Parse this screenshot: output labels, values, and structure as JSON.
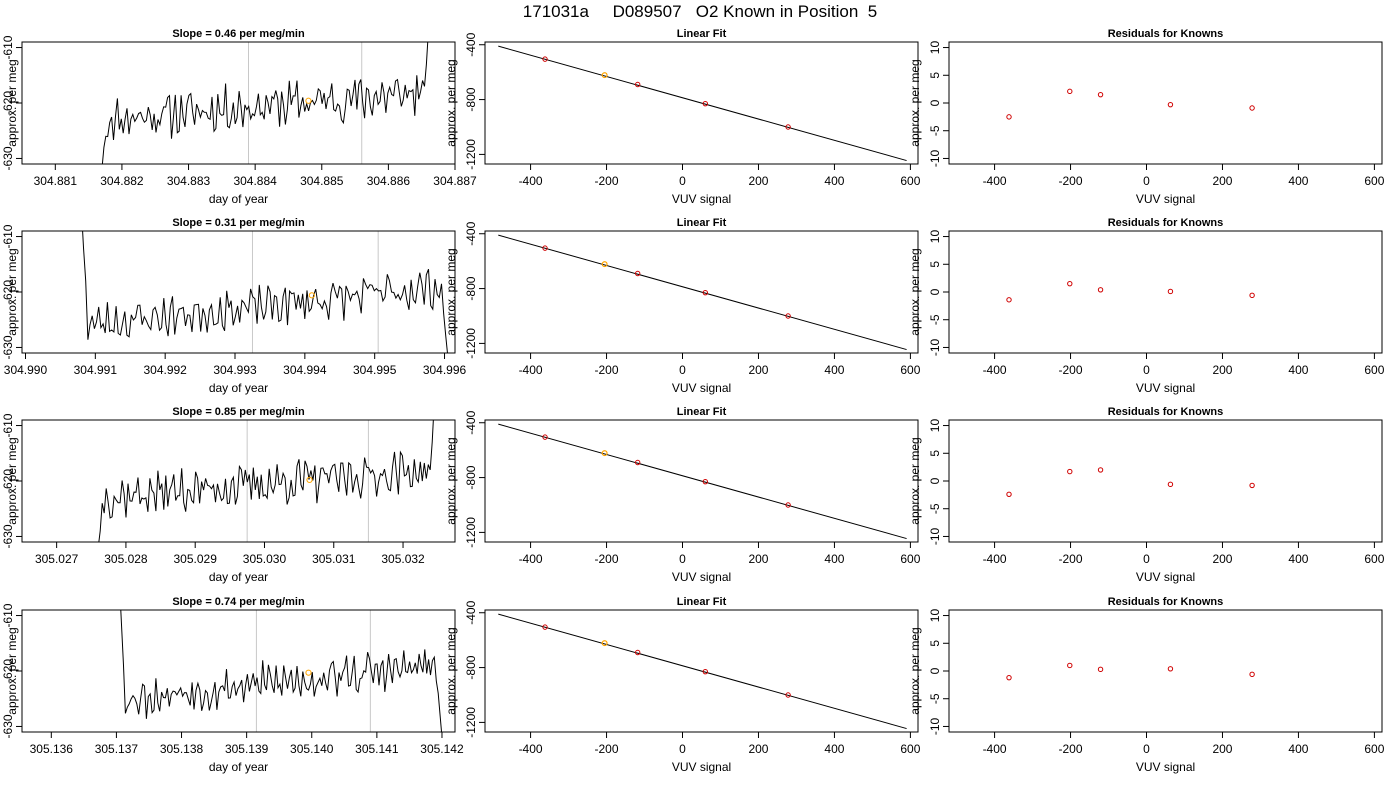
{
  "page": {
    "title": "171031a     D089507   O2 Known in Position  5"
  },
  "chart_data": [
    {
      "type": "line",
      "row": 0,
      "title": "Slope =  0.46  per meg/min",
      "xlabel": "day of year",
      "ylabel": "approx. per meg",
      "xlim": [
        304.8805,
        304.887
      ],
      "ylim": [
        -631,
        -609
      ],
      "x_ticks": [
        "304.881",
        "304.882",
        "304.883",
        "304.884",
        "304.885",
        "304.886",
        "304.887"
      ],
      "x_tick_values": [
        304.881,
        304.882,
        304.883,
        304.884,
        304.885,
        304.886,
        304.887
      ],
      "y_ticks": [
        "-610",
        "-620",
        "-630"
      ],
      "y_tick_values": [
        -610,
        -620,
        -630
      ],
      "x_start": 304.8817,
      "x_end": 304.8866,
      "vlines": [
        304.8839,
        304.8856
      ],
      "marker": {
        "x": 304.8848,
        "y": -619.6
      },
      "entry_tail": [
        -632,
        -628,
        -626
      ],
      "exit_tail": [
        -617,
        -613,
        -607
      ],
      "noise_seed": 11,
      "drift": [
        -623,
        -618
      ],
      "amplitude": 3.2
    },
    {
      "type": "scatter",
      "row": 0,
      "title": "Linear Fit",
      "xlabel": "VUV signal",
      "ylabel": "approx. per meg",
      "xlim": [
        -520,
        620
      ],
      "ylim": [
        -1270,
        -380
      ],
      "x_ticks": [
        "-400",
        "-200",
        "0",
        "200",
        "400",
        "600"
      ],
      "x_tick_values": [
        -400,
        -200,
        0,
        200,
        400,
        600
      ],
      "y_ticks": [
        "-400",
        "-800",
        "-1200"
      ],
      "y_tick_values": [
        -400,
        -800,
        -1200
      ],
      "line": {
        "x": [
          -485,
          590
        ],
        "y": [
          -410,
          -1245
        ]
      },
      "points": [
        {
          "x": -362,
          "y": -505
        },
        {
          "x": -118,
          "y": -690
        },
        {
          "x": 60,
          "y": -830
        },
        {
          "x": 278,
          "y": -1000
        }
      ],
      "highlight": {
        "x": -205,
        "y": -622
      }
    },
    {
      "type": "scatter",
      "row": 0,
      "title": "Residuals for Knowns",
      "xlabel": "VUV signal",
      "ylabel": "approx. per meg",
      "xlim": [
        -520,
        620
      ],
      "ylim": [
        -11,
        11
      ],
      "x_ticks": [
        "-400",
        "-200",
        "0",
        "200",
        "400",
        "600"
      ],
      "x_tick_values": [
        -400,
        -200,
        0,
        200,
        400,
        600
      ],
      "y_ticks": [
        "10",
        "5",
        "0",
        "-5",
        "-10"
      ],
      "y_tick_values": [
        10,
        5,
        0,
        -5,
        -10
      ],
      "points": [
        {
          "x": -362,
          "y": -2.5
        },
        {
          "x": -202,
          "y": 2.1
        },
        {
          "x": -121,
          "y": 1.5
        },
        {
          "x": 63,
          "y": -0.3
        },
        {
          "x": 278,
          "y": -0.9
        }
      ]
    },
    {
      "type": "line",
      "row": 1,
      "title": "Slope =  0.31  per meg/min",
      "xlabel": "day of year",
      "ylabel": "approx. per meg",
      "xlim": [
        304.98995,
        304.99615
      ],
      "ylim": [
        -631,
        -609
      ],
      "x_ticks": [
        "304.990",
        "304.991",
        "304.992",
        "304.993",
        "304.994",
        "304.995",
        "304.996"
      ],
      "x_tick_values": [
        304.99,
        304.991,
        304.992,
        304.993,
        304.994,
        304.995,
        304.996
      ],
      "y_ticks": [
        "-610",
        "-620",
        "-630"
      ],
      "y_tick_values": [
        -610,
        -620,
        -630
      ],
      "x_start": 304.9908,
      "x_end": 304.99605,
      "vlines": [
        304.99325,
        304.99505
      ],
      "marker": {
        "x": 304.9941,
        "y": -620.6
      },
      "entry_tail": [
        -605,
        -612,
        -618
      ],
      "exit_tail": [
        -624,
        -628,
        -632
      ],
      "noise_seed": 23,
      "drift": [
        -626,
        -619
      ],
      "amplitude": 2.8
    },
    {
      "type": "scatter",
      "row": 1,
      "title": "Linear Fit",
      "xlabel": "VUV signal",
      "ylabel": "approx. per meg",
      "xlim": [
        -520,
        620
      ],
      "ylim": [
        -1270,
        -380
      ],
      "x_ticks": [
        "-400",
        "-200",
        "0",
        "200",
        "400",
        "600"
      ],
      "x_tick_values": [
        -400,
        -200,
        0,
        200,
        400,
        600
      ],
      "y_ticks": [
        "-400",
        "-800",
        "-1200"
      ],
      "y_tick_values": [
        -400,
        -800,
        -1200
      ],
      "line": {
        "x": [
          -485,
          590
        ],
        "y": [
          -410,
          -1245
        ]
      },
      "points": [
        {
          "x": -362,
          "y": -505
        },
        {
          "x": -118,
          "y": -690
        },
        {
          "x": 60,
          "y": -830
        },
        {
          "x": 278,
          "y": -1000
        }
      ],
      "highlight": {
        "x": -205,
        "y": -622
      }
    },
    {
      "type": "scatter",
      "row": 1,
      "title": "Residuals for Knowns",
      "xlabel": "VUV signal",
      "ylabel": "approx. per meg",
      "xlim": [
        -520,
        620
      ],
      "ylim": [
        -11,
        11
      ],
      "x_ticks": [
        "-400",
        "-200",
        "0",
        "200",
        "400",
        "600"
      ],
      "x_tick_values": [
        -400,
        -200,
        0,
        200,
        400,
        600
      ],
      "y_ticks": [
        "10",
        "5",
        "0",
        "-5",
        "-10"
      ],
      "y_tick_values": [
        10,
        5,
        0,
        -5,
        -10
      ],
      "points": [
        {
          "x": -362,
          "y": -1.4
        },
        {
          "x": -202,
          "y": 1.5
        },
        {
          "x": -121,
          "y": 0.4
        },
        {
          "x": 63,
          "y": 0.1
        },
        {
          "x": 278,
          "y": -0.6
        }
      ]
    },
    {
      "type": "line",
      "row": 2,
      "title": "Slope =  0.85  per meg/min",
      "xlabel": "day of year",
      "ylabel": "approx. per meg",
      "xlim": [
        305.0265,
        305.03275
      ],
      "ylim": [
        -631,
        -609
      ],
      "x_ticks": [
        "305.027",
        "305.028",
        "305.029",
        "305.030",
        "305.031",
        "305.032"
      ],
      "x_tick_values": [
        305.027,
        305.028,
        305.029,
        305.03,
        305.031,
        305.032
      ],
      "y_ticks": [
        "-610",
        "-620",
        "-630"
      ],
      "y_tick_values": [
        -610,
        -620,
        -630
      ],
      "x_start": 305.0276,
      "x_end": 305.03245,
      "vlines": [
        305.02975,
        305.0315
      ],
      "marker": {
        "x": 305.03065,
        "y": -619.8
      },
      "entry_tail": [
        -632,
        -629,
        -624
      ],
      "exit_tail": [
        -618,
        -613,
        -606
      ],
      "noise_seed": 37,
      "drift": [
        -623,
        -618
      ],
      "amplitude": 3.0
    },
    {
      "type": "scatter",
      "row": 2,
      "title": "Linear Fit",
      "xlabel": "VUV signal",
      "ylabel": "approx. per meg",
      "xlim": [
        -520,
        620
      ],
      "ylim": [
        -1270,
        -380
      ],
      "x_ticks": [
        "-400",
        "-200",
        "0",
        "200",
        "400",
        "600"
      ],
      "x_tick_values": [
        -400,
        -200,
        0,
        200,
        400,
        600
      ],
      "y_ticks": [
        "-400",
        "-800",
        "-1200"
      ],
      "y_tick_values": [
        -400,
        -800,
        -1200
      ],
      "line": {
        "x": [
          -485,
          590
        ],
        "y": [
          -410,
          -1245
        ]
      },
      "points": [
        {
          "x": -362,
          "y": -505
        },
        {
          "x": -118,
          "y": -690
        },
        {
          "x": 60,
          "y": -830
        },
        {
          "x": 278,
          "y": -1000
        }
      ],
      "highlight": {
        "x": -205,
        "y": -622
      }
    },
    {
      "type": "scatter",
      "row": 2,
      "title": "Residuals for Knowns",
      "xlabel": "VUV signal",
      "ylabel": "approx. per meg",
      "xlim": [
        -520,
        620
      ],
      "ylim": [
        -11,
        11
      ],
      "x_ticks": [
        "-400",
        "-200",
        "0",
        "200",
        "400",
        "600"
      ],
      "x_tick_values": [
        -400,
        -200,
        0,
        200,
        400,
        600
      ],
      "y_ticks": [
        "10",
        "5",
        "0",
        "-5",
        "-10"
      ],
      "y_tick_values": [
        10,
        5,
        0,
        -5,
        -10
      ],
      "points": [
        {
          "x": -362,
          "y": -2.4
        },
        {
          "x": -202,
          "y": 1.7
        },
        {
          "x": -121,
          "y": 2.0
        },
        {
          "x": 63,
          "y": -0.6
        },
        {
          "x": 278,
          "y": -0.8
        }
      ]
    },
    {
      "type": "line",
      "row": 3,
      "title": "Slope =  0.74  per meg/min",
      "xlabel": "day of year",
      "ylabel": "approx. per meg",
      "xlim": [
        305.13555,
        305.1422
      ],
      "ylim": [
        -631,
        -609
      ],
      "x_ticks": [
        "305.136",
        "305.137",
        "305.138",
        "305.139",
        "305.140",
        "305.141",
        "305.142"
      ],
      "x_tick_values": [
        305.136,
        305.137,
        305.138,
        305.139,
        305.14,
        305.141,
        305.142
      ],
      "y_ticks": [
        "-610",
        "-620",
        "-630"
      ],
      "y_tick_values": [
        -610,
        -620,
        -630
      ],
      "x_start": 305.13705,
      "x_end": 305.142,
      "vlines": [
        305.13915,
        305.1409
      ],
      "marker": {
        "x": 305.13995,
        "y": -620.3
      },
      "entry_tail": [
        -605,
        -612,
        -619
      ],
      "exit_tail": [
        -624,
        -628,
        -632
      ],
      "noise_seed": 53,
      "drift": [
        -625,
        -619
      ],
      "amplitude": 2.9
    },
    {
      "type": "scatter",
      "row": 3,
      "title": "Linear Fit",
      "xlabel": "VUV signal",
      "ylabel": "approx. per meg",
      "xlim": [
        -520,
        620
      ],
      "ylim": [
        -1270,
        -380
      ],
      "x_ticks": [
        "-400",
        "-200",
        "0",
        "200",
        "400",
        "600"
      ],
      "x_tick_values": [
        -400,
        -200,
        0,
        200,
        400,
        600
      ],
      "y_ticks": [
        "-400",
        "-800",
        "-1200"
      ],
      "y_tick_values": [
        -400,
        -800,
        -1200
      ],
      "line": {
        "x": [
          -485,
          590
        ],
        "y": [
          -410,
          -1245
        ]
      },
      "points": [
        {
          "x": -362,
          "y": -505
        },
        {
          "x": -118,
          "y": -690
        },
        {
          "x": 60,
          "y": -830
        },
        {
          "x": 278,
          "y": -1000
        }
      ],
      "highlight": {
        "x": -205,
        "y": -622
      }
    },
    {
      "type": "scatter",
      "row": 3,
      "title": "Residuals for Knowns",
      "xlabel": "VUV signal",
      "ylabel": "approx. per meg",
      "xlim": [
        -520,
        620
      ],
      "ylim": [
        -11,
        11
      ],
      "x_ticks": [
        "-400",
        "-200",
        "0",
        "200",
        "400",
        "600"
      ],
      "x_tick_values": [
        -400,
        -200,
        0,
        200,
        400,
        600
      ],
      "y_ticks": [
        "10",
        "5",
        "0",
        "-5",
        "-10"
      ],
      "y_tick_values": [
        10,
        5,
        0,
        -5,
        -10
      ],
      "points": [
        {
          "x": -362,
          "y": -1.2
        },
        {
          "x": -202,
          "y": 1.0
        },
        {
          "x": -121,
          "y": 0.3
        },
        {
          "x": 63,
          "y": 0.4
        },
        {
          "x": 278,
          "y": -0.6
        }
      ]
    }
  ],
  "colors": {
    "series_line": "#000000",
    "vline": "#c8c8c8",
    "marker_orange": "#ffa500",
    "residual_points": "#d00000",
    "fit_points": "#d00000"
  }
}
